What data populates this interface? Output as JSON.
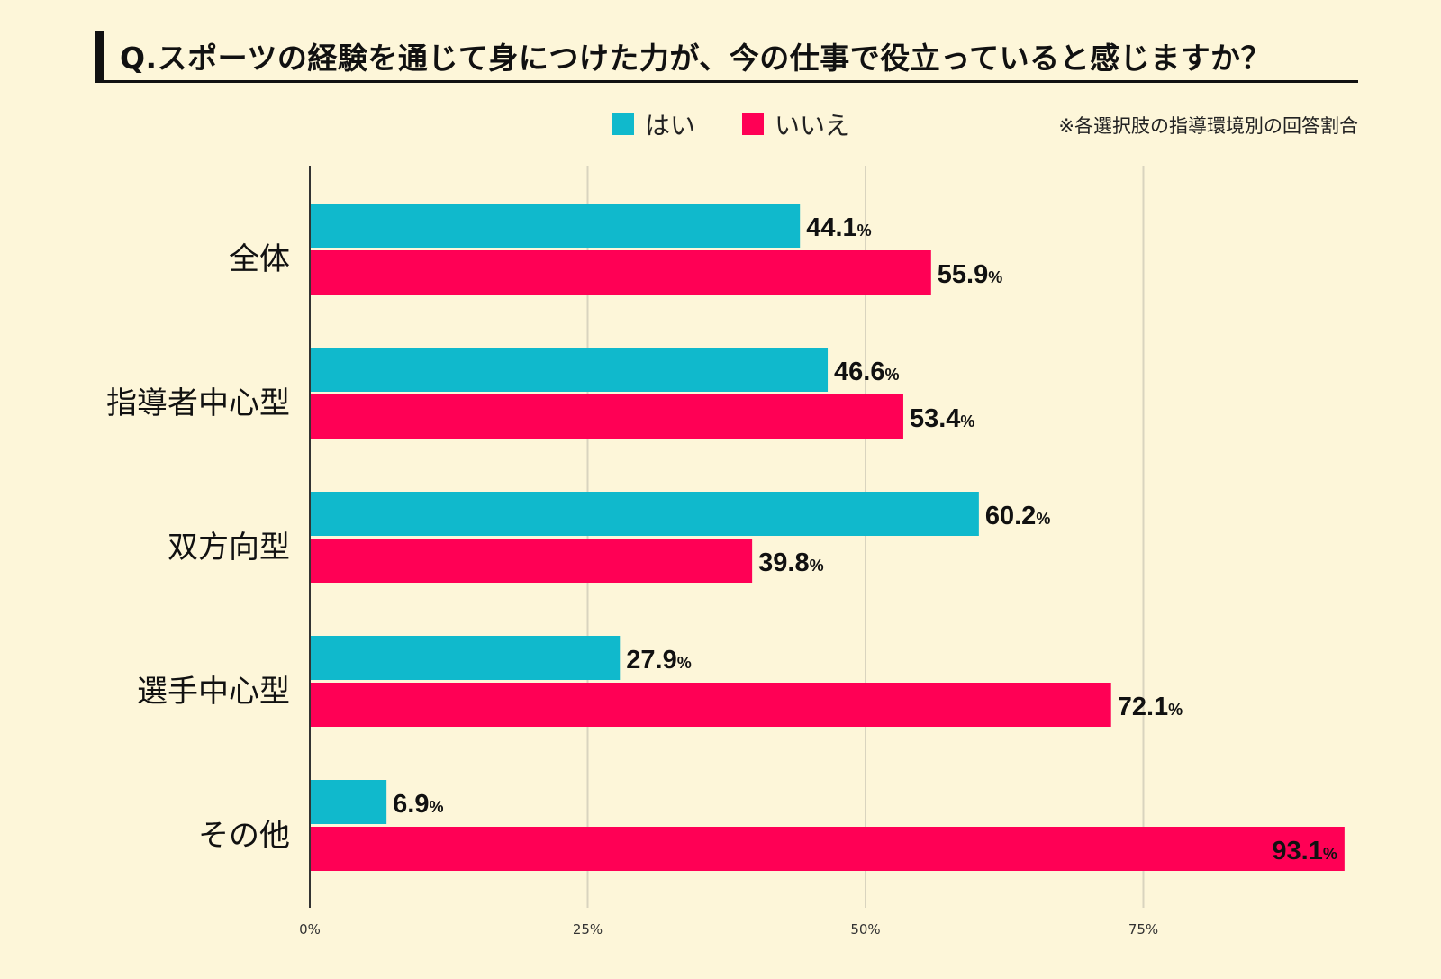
{
  "title": "Q.スポーツの経験を通じて身につけた力が、今の仕事で役立っていると感じますか？",
  "note": "※各選択肢の指導環境別の回答割合",
  "colors": {
    "yes": "#10b9cc",
    "no": "#ff0055",
    "background": "#fdf6d9",
    "grid": "#d9d4bf",
    "axis": "#333333"
  },
  "chart_data": {
    "type": "bar",
    "orientation": "horizontal",
    "categories": [
      "全体",
      "指導者中心型",
      "双方向型",
      "選手中心型",
      "その他"
    ],
    "series": [
      {
        "name": "はい",
        "values": [
          44.1,
          46.6,
          60.2,
          27.9,
          6.9
        ]
      },
      {
        "name": "いいえ",
        "values": [
          55.9,
          53.4,
          39.8,
          72.1,
          93.1
        ]
      }
    ],
    "value_suffix": "%",
    "xlim": [
      0,
      100
    ],
    "xticks": [
      0,
      25,
      50,
      75
    ],
    "xtick_labels": [
      "0%",
      "25%",
      "50%",
      "75%"
    ],
    "grid": true,
    "legend": "top-center"
  }
}
